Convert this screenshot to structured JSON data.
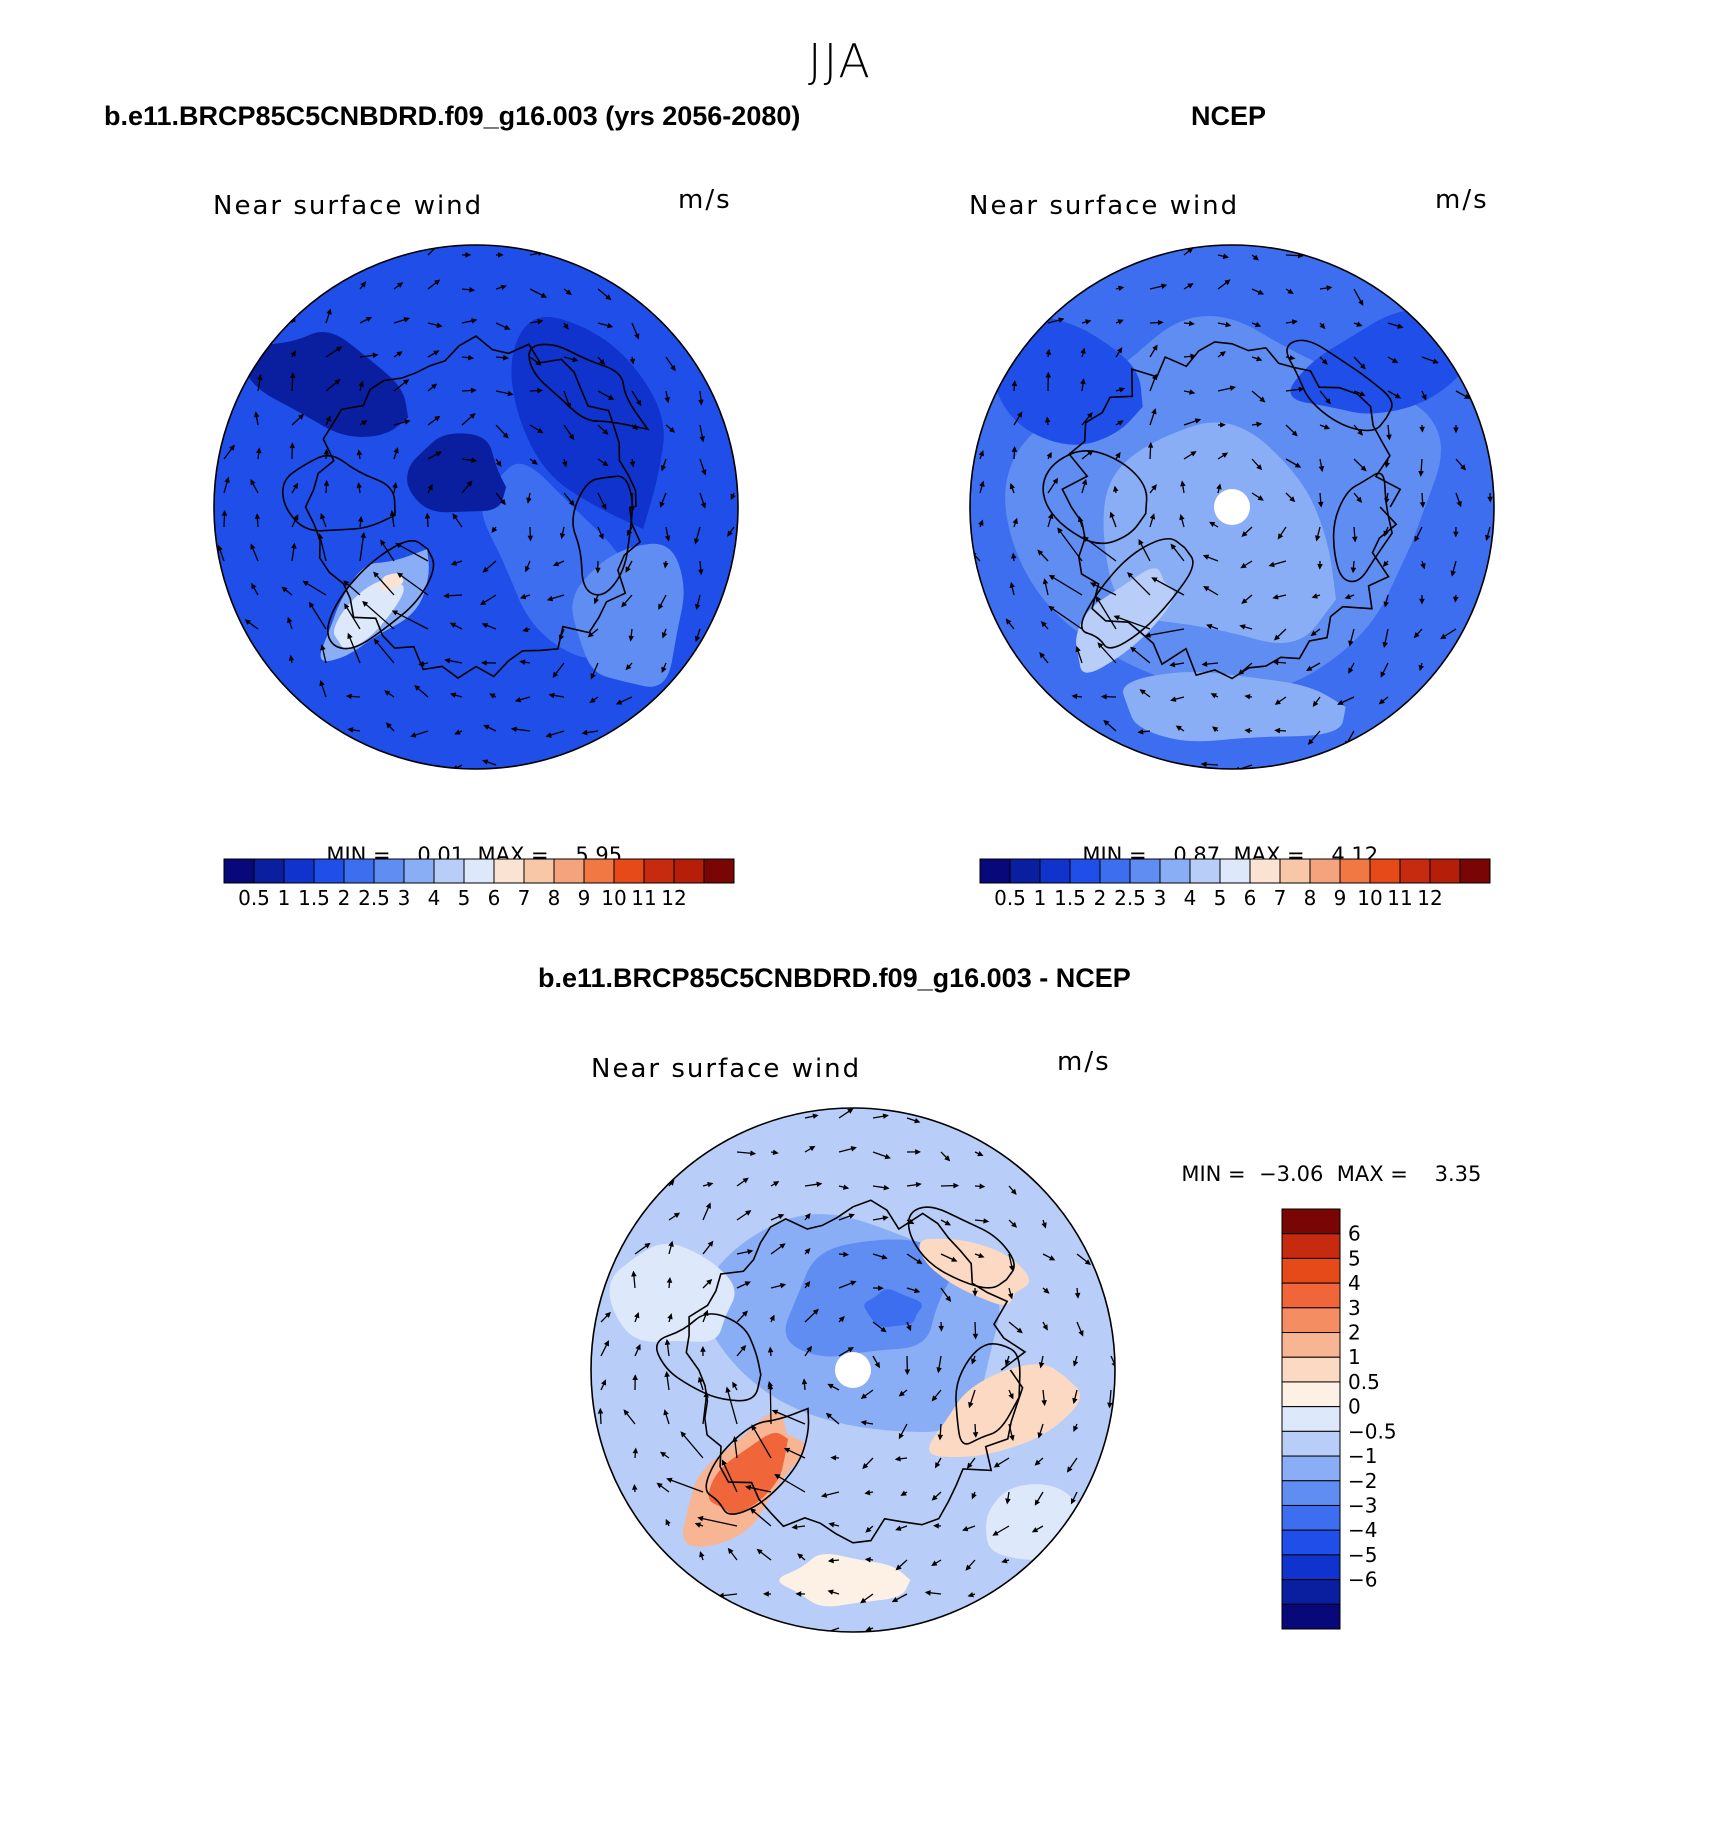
{
  "figure": {
    "season": "JJA"
  },
  "colors": {
    "seq": [
      "#08087a",
      "#0a1ea0",
      "#0f33cc",
      "#1f4fe8",
      "#3d6ef0",
      "#5f8df2",
      "#8aaef5",
      "#b8cdf7",
      "#dde8fb",
      "#fbe3d3",
      "#f8c7a8",
      "#f5a37d",
      "#f27843",
      "#e64a19",
      "#c62a0f",
      "#b51f0a",
      "#7a0505"
    ],
    "diff": [
      "#08087a",
      "#0a1ea0",
      "#0f33cc",
      "#1f4fe8",
      "#3d6ef0",
      "#5f8df2",
      "#8aaef5",
      "#b8cdf7",
      "#dde8fb",
      "#fdf1e6",
      "#fbd9c2",
      "#f8b594",
      "#f58d63",
      "#f0663a",
      "#e64a19",
      "#c62a0f",
      "#7a0505"
    ]
  },
  "panels": [
    {
      "title": "b.e11.BRCP85C5CNBDRD.f09_g16.003 (yrs 2056-2080)",
      "label": "Near surface wind",
      "units": "m/s",
      "min_label": "MIN =",
      "min_value": "0.01",
      "max_label": "MAX =",
      "max_value": "5.95"
    },
    {
      "title": "NCEP",
      "label": "Near surface wind",
      "units": "m/s",
      "min_label": "MIN =",
      "min_value": "0.87",
      "max_label": "MAX =",
      "max_value": "4.12"
    },
    {
      "title": "b.e11.BRCP85C5CNBDRD.f09_g16.003 - NCEP",
      "label": "Near surface wind",
      "units": "m/s",
      "min_label": "MIN =",
      "min_value": "−3.06",
      "max_label": "MAX =",
      "max_value": "3.35"
    }
  ],
  "chart_data": [
    {
      "type": "heatmap",
      "projection": "north polar stereographic",
      "variable": "Near surface wind",
      "units": "m/s",
      "min": 0.01,
      "max": 5.95,
      "colorbar_levels": [
        "0.5",
        "1",
        "1.5",
        "2",
        "2.5",
        "3",
        "4",
        "5",
        "6",
        "7",
        "8",
        "9",
        "10",
        "11",
        "12"
      ]
    },
    {
      "type": "heatmap",
      "projection": "north polar stereographic",
      "variable": "Near surface wind",
      "units": "m/s",
      "min": 0.87,
      "max": 4.12,
      "colorbar_levels": [
        "0.5",
        "1",
        "1.5",
        "2",
        "2.5",
        "3",
        "4",
        "5",
        "6",
        "7",
        "8",
        "9",
        "10",
        "11",
        "12"
      ]
    },
    {
      "type": "heatmap",
      "projection": "north polar stereographic",
      "variable": "Near surface wind",
      "units": "m/s",
      "min": -3.06,
      "max": 3.35,
      "colorbar_levels": [
        "6",
        "5",
        "4",
        "3",
        "2",
        "1",
        "0.5",
        "0",
        "−0.5",
        "−1",
        "−2",
        "−3",
        "−4",
        "−5",
        "−6"
      ]
    }
  ]
}
